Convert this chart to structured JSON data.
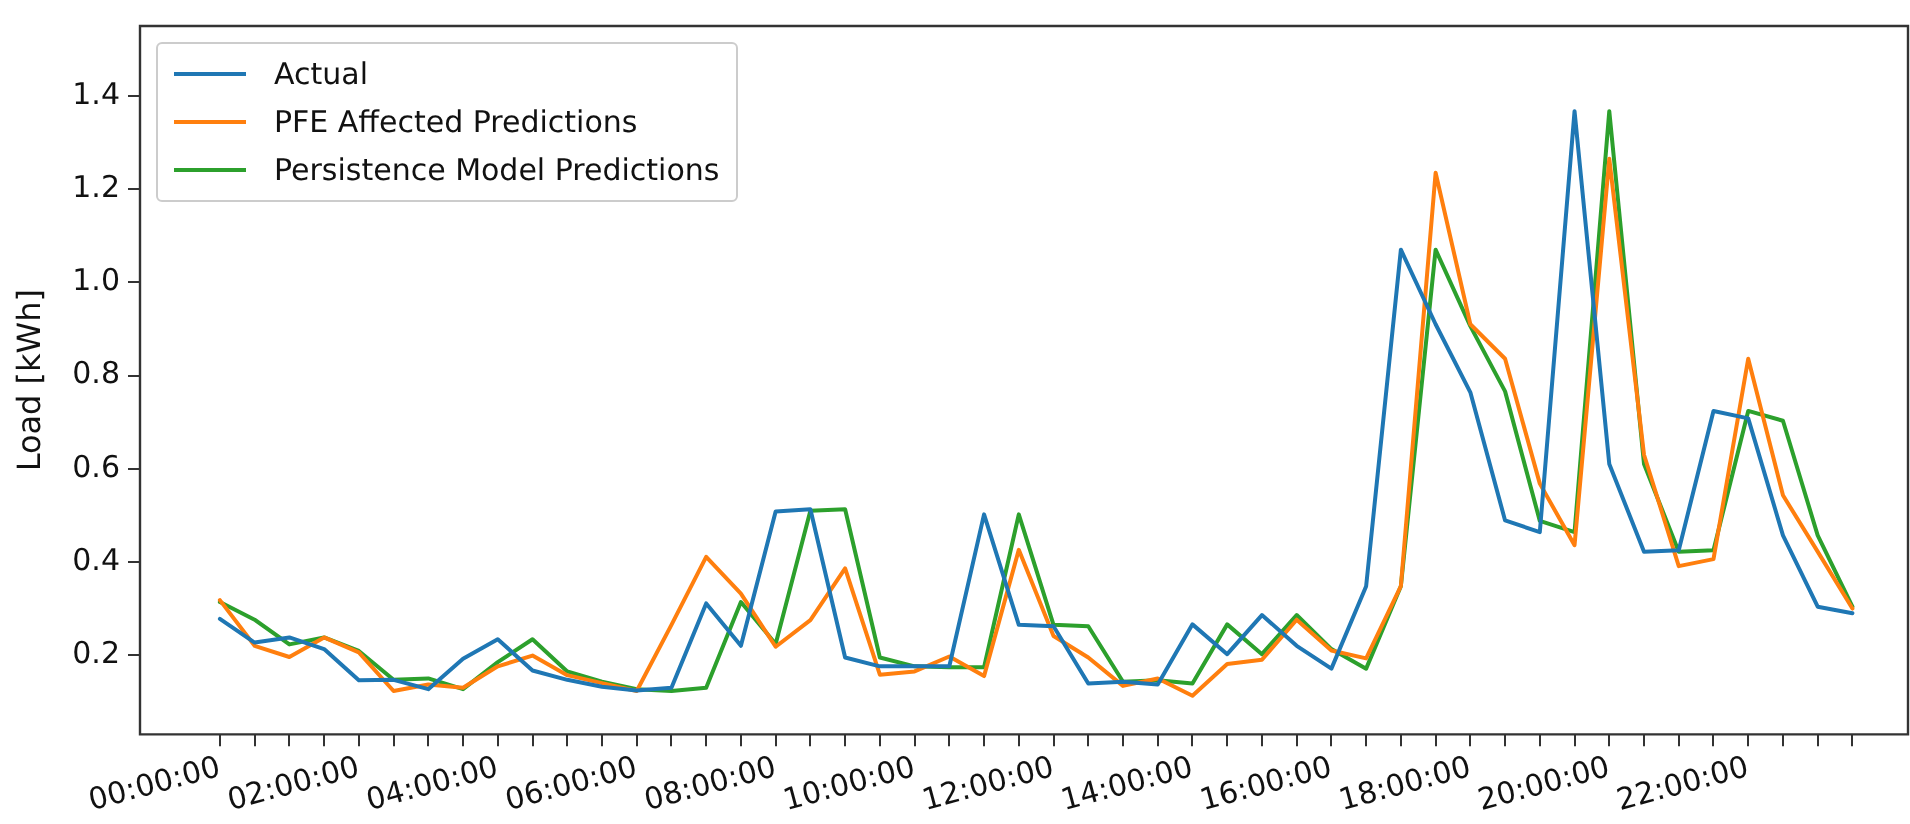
{
  "chart_data": {
    "type": "line",
    "ylabel": "Load [kWh]",
    "x": [
      0,
      0.5,
      1,
      1.5,
      2,
      2.5,
      3,
      3.5,
      4,
      4.5,
      5,
      5.5,
      6,
      6.5,
      7,
      7.5,
      8,
      8.5,
      9,
      9.5,
      10,
      10.5,
      11,
      11.5,
      12,
      12.5,
      13,
      13.5,
      14,
      14.5,
      15,
      15.5,
      16,
      16.5,
      17,
      17.5,
      18,
      18.5,
      19,
      19.5,
      20,
      20.5,
      21,
      21.5,
      22,
      22.5,
      23,
      23.5
    ],
    "series": [
      {
        "name": "Actual",
        "color": "#1f77b4",
        "values": [
          0.278,
          0.227,
          0.238,
          0.213,
          0.146,
          0.147,
          0.127,
          0.192,
          0.234,
          0.167,
          0.147,
          0.132,
          0.124,
          0.13,
          0.311,
          0.22,
          0.508,
          0.513,
          0.195,
          0.176,
          0.176,
          0.176,
          0.502,
          0.265,
          0.262,
          0.139,
          0.143,
          0.137,
          0.266,
          0.202,
          0.286,
          0.22,
          0.171,
          0.348,
          1.07,
          0.91,
          0.764,
          0.489,
          0.464,
          1.367,
          0.61,
          0.422,
          0.425,
          0.724,
          0.708,
          0.457,
          0.304,
          0.29
        ]
      },
      {
        "name": "PFE Affected Predictions",
        "color": "#ff7f0e",
        "values": [
          0.318,
          0.22,
          0.196,
          0.238,
          0.206,
          0.123,
          0.137,
          0.13,
          0.176,
          0.199,
          0.157,
          0.14,
          0.123,
          0.265,
          0.411,
          0.332,
          0.218,
          0.275,
          0.386,
          0.158,
          0.165,
          0.197,
          0.155,
          0.426,
          0.241,
          0.195,
          0.134,
          0.15,
          0.113,
          0.181,
          0.19,
          0.276,
          0.21,
          0.193,
          0.348,
          1.235,
          0.91,
          0.836,
          0.568,
          0.436,
          1.265,
          0.63,
          0.391,
          0.406,
          0.836,
          0.543,
          0.422,
          0.3
        ]
      },
      {
        "name": "Persistence Model Predictions",
        "color": "#2ca02c",
        "values": [
          0.314,
          0.276,
          0.223,
          0.238,
          0.209,
          0.147,
          0.15,
          0.127,
          0.185,
          0.234,
          0.165,
          0.143,
          0.127,
          0.123,
          0.13,
          0.314,
          0.224,
          0.51,
          0.513,
          0.195,
          0.176,
          0.174,
          0.174,
          0.502,
          0.265,
          0.262,
          0.143,
          0.146,
          0.139,
          0.266,
          0.202,
          0.286,
          0.213,
          0.171,
          0.348,
          1.07,
          0.906,
          0.766,
          0.488,
          0.464,
          1.367,
          0.61,
          0.422,
          0.425,
          0.724,
          0.703,
          0.457,
          0.304
        ]
      }
    ],
    "xlim": [
      -1.15,
      24.3
    ],
    "xticks": [
      {
        "value": 0,
        "label": "00:00:00"
      },
      {
        "value": 0.5,
        "label": null
      },
      {
        "value": 1,
        "label": null
      },
      {
        "value": 1.5,
        "label": null
      },
      {
        "value": 2,
        "label": "02:00:00"
      },
      {
        "value": 2.5,
        "label": null
      },
      {
        "value": 3,
        "label": null
      },
      {
        "value": 3.5,
        "label": null
      },
      {
        "value": 4,
        "label": "04:00:00"
      },
      {
        "value": 4.5,
        "label": null
      },
      {
        "value": 5,
        "label": null
      },
      {
        "value": 5.5,
        "label": null
      },
      {
        "value": 6,
        "label": "06:00:00"
      },
      {
        "value": 6.5,
        "label": null
      },
      {
        "value": 7,
        "label": null
      },
      {
        "value": 7.5,
        "label": null
      },
      {
        "value": 8,
        "label": "08:00:00"
      },
      {
        "value": 8.5,
        "label": null
      },
      {
        "value": 9,
        "label": null
      },
      {
        "value": 9.5,
        "label": null
      },
      {
        "value": 10,
        "label": "10:00:00"
      },
      {
        "value": 10.5,
        "label": null
      },
      {
        "value": 11,
        "label": null
      },
      {
        "value": 11.5,
        "label": null
      },
      {
        "value": 12,
        "label": "12:00:00"
      },
      {
        "value": 12.5,
        "label": null
      },
      {
        "value": 13,
        "label": null
      },
      {
        "value": 13.5,
        "label": null
      },
      {
        "value": 14,
        "label": "14:00:00"
      },
      {
        "value": 14.5,
        "label": null
      },
      {
        "value": 15,
        "label": null
      },
      {
        "value": 15.5,
        "label": null
      },
      {
        "value": 16,
        "label": "16:00:00"
      },
      {
        "value": 16.5,
        "label": null
      },
      {
        "value": 17,
        "label": null
      },
      {
        "value": 17.5,
        "label": null
      },
      {
        "value": 18,
        "label": "18:00:00"
      },
      {
        "value": 18.5,
        "label": null
      },
      {
        "value": 19,
        "label": null
      },
      {
        "value": 19.5,
        "label": null
      },
      {
        "value": 20,
        "label": "20:00:00"
      },
      {
        "value": 20.5,
        "label": null
      },
      {
        "value": 21,
        "label": null
      },
      {
        "value": 21.5,
        "label": null
      },
      {
        "value": 22,
        "label": "22:00:00"
      },
      {
        "value": 22.5,
        "label": null
      },
      {
        "value": 23,
        "label": null
      },
      {
        "value": 23.5,
        "label": null
      }
    ],
    "ylim": [
      0.03,
      1.55
    ],
    "yticks": [
      0.2,
      0.4,
      0.6,
      0.8,
      {
        "value": 1,
        "label": "1.0"
      },
      1.2,
      1.4
    ],
    "grid": false,
    "legend": "top left",
    "marker": "none",
    "line_style": "solid"
  }
}
